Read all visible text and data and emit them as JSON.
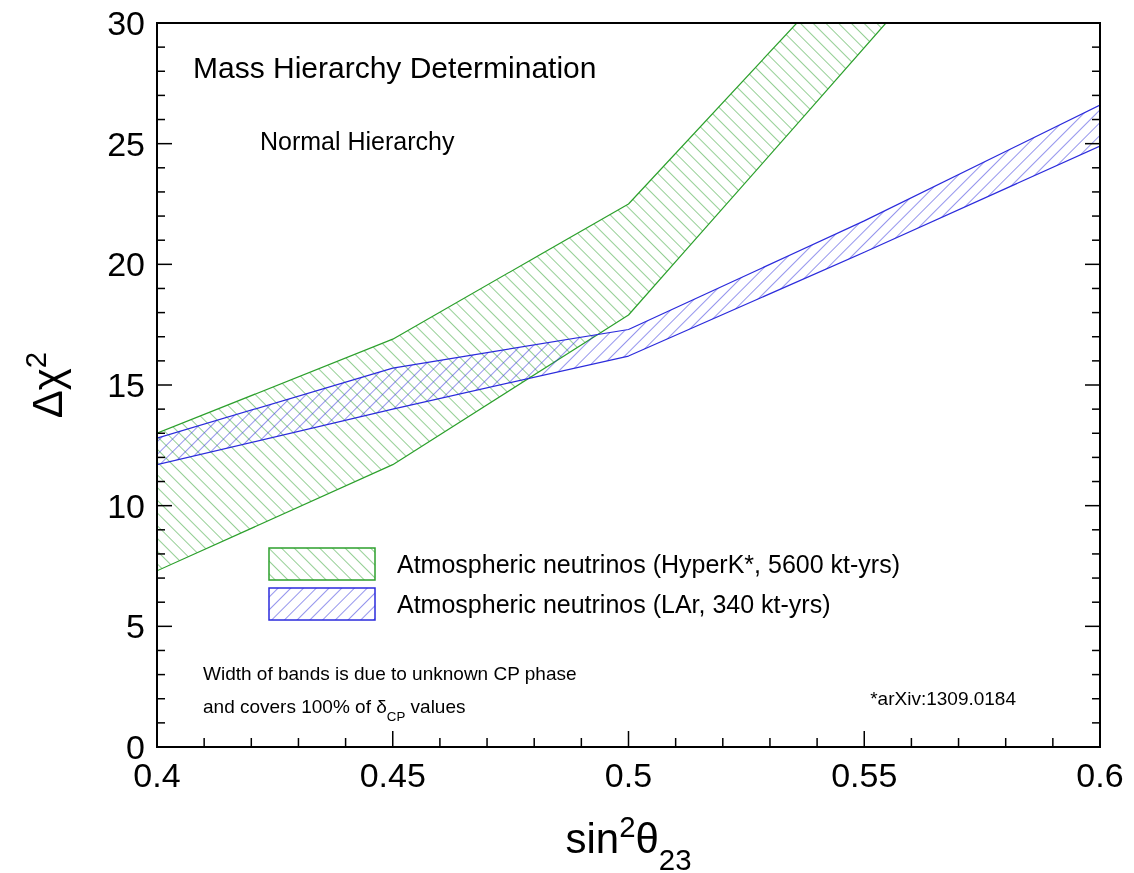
{
  "chart_data": {
    "type": "area",
    "title": "Mass Hierarchy Determination",
    "subtitle": "Normal Hierarchy",
    "xlabel": "sin$^{2}$θ$_{23}$",
    "ylabel": "Δχ$^{2}$",
    "annotations": [
      "Width of bands is due to unknown CP phase",
      "and covers 100% of δ$_{CP}$ values",
      "*arXiv:1309.0184"
    ],
    "series": [
      {
        "name": "Atmospheric neutrinos (HyperK*, 5600 kt-yrs)",
        "color": "#2ca02c",
        "x": [
          0.4,
          0.45,
          0.5,
          0.5357,
          0.5546
        ],
        "values": [
          null,
          null,
          null,
          null,
          null
        ],
        "upper": [
          13.0,
          16.9,
          22.5,
          30,
          30
        ],
        "lower": [
          7.3,
          11.7,
          17.9,
          25.8,
          30
        ]
      },
      {
        "name": "Atmospheric neutrinos (LAr, 340 kt-yrs)",
        "color": "#2b2bdc",
        "x": [
          0.4,
          0.45,
          0.5,
          0.55,
          0.6
        ],
        "values": [
          null,
          null,
          null,
          null,
          null
        ],
        "upper": [
          12.8,
          15.7,
          17.3,
          21.8,
          26.6
        ],
        "lower": [
          11.7,
          14.0,
          16.2,
          20.5,
          24.9
        ]
      }
    ],
    "xlim": [
      0.4,
      0.6
    ],
    "ylim": [
      0,
      30
    ],
    "xticks": [
      0.4,
      {
        "value": 0.41,
        "label": null
      },
      {
        "value": 0.42,
        "label": null
      },
      {
        "value": 0.43,
        "label": null
      },
      {
        "value": 0.44,
        "label": null
      },
      0.45,
      {
        "value": 0.46,
        "label": null
      },
      {
        "value": 0.47,
        "label": null
      },
      {
        "value": 0.48,
        "label": null
      },
      {
        "value": 0.49,
        "label": null
      },
      0.5,
      {
        "value": 0.51,
        "label": null
      },
      {
        "value": 0.52,
        "label": null
      },
      {
        "value": 0.53,
        "label": null
      },
      {
        "value": 0.54,
        "label": null
      },
      0.55,
      {
        "value": 0.56,
        "label": null
      },
      {
        "value": 0.57,
        "label": null
      },
      {
        "value": 0.58,
        "label": null
      },
      {
        "value": 0.59,
        "label": null
      },
      0.6
    ],
    "yticks": [
      0,
      {
        "value": 1,
        "label": null
      },
      {
        "value": 2,
        "label": null
      },
      {
        "value": 3,
        "label": null
      },
      {
        "value": 4,
        "label": null
      },
      5,
      {
        "value": 6,
        "label": null
      },
      {
        "value": 7,
        "label": null
      },
      {
        "value": 8,
        "label": null
      },
      {
        "value": 9,
        "label": null
      },
      10,
      {
        "value": 11,
        "label": null
      },
      {
        "value": 12,
        "label": null
      },
      {
        "value": 13,
        "label": null
      },
      {
        "value": 14,
        "label": null
      },
      15,
      {
        "value": 16,
        "label": null
      },
      {
        "value": 17,
        "label": null
      },
      {
        "value": 18,
        "label": null
      },
      {
        "value": 19,
        "label": null
      },
      20,
      {
        "value": 21,
        "label": null
      },
      {
        "value": 22,
        "label": null
      },
      {
        "value": 23,
        "label": null
      },
      {
        "value": 24,
        "label": null
      },
      25,
      {
        "value": 26,
        "label": null
      },
      {
        "value": 27,
        "label": null
      },
      {
        "value": 28,
        "label": null
      },
      {
        "value": 29,
        "label": null
      },
      30
    ],
    "legend": "bottom",
    "grid": false
  }
}
